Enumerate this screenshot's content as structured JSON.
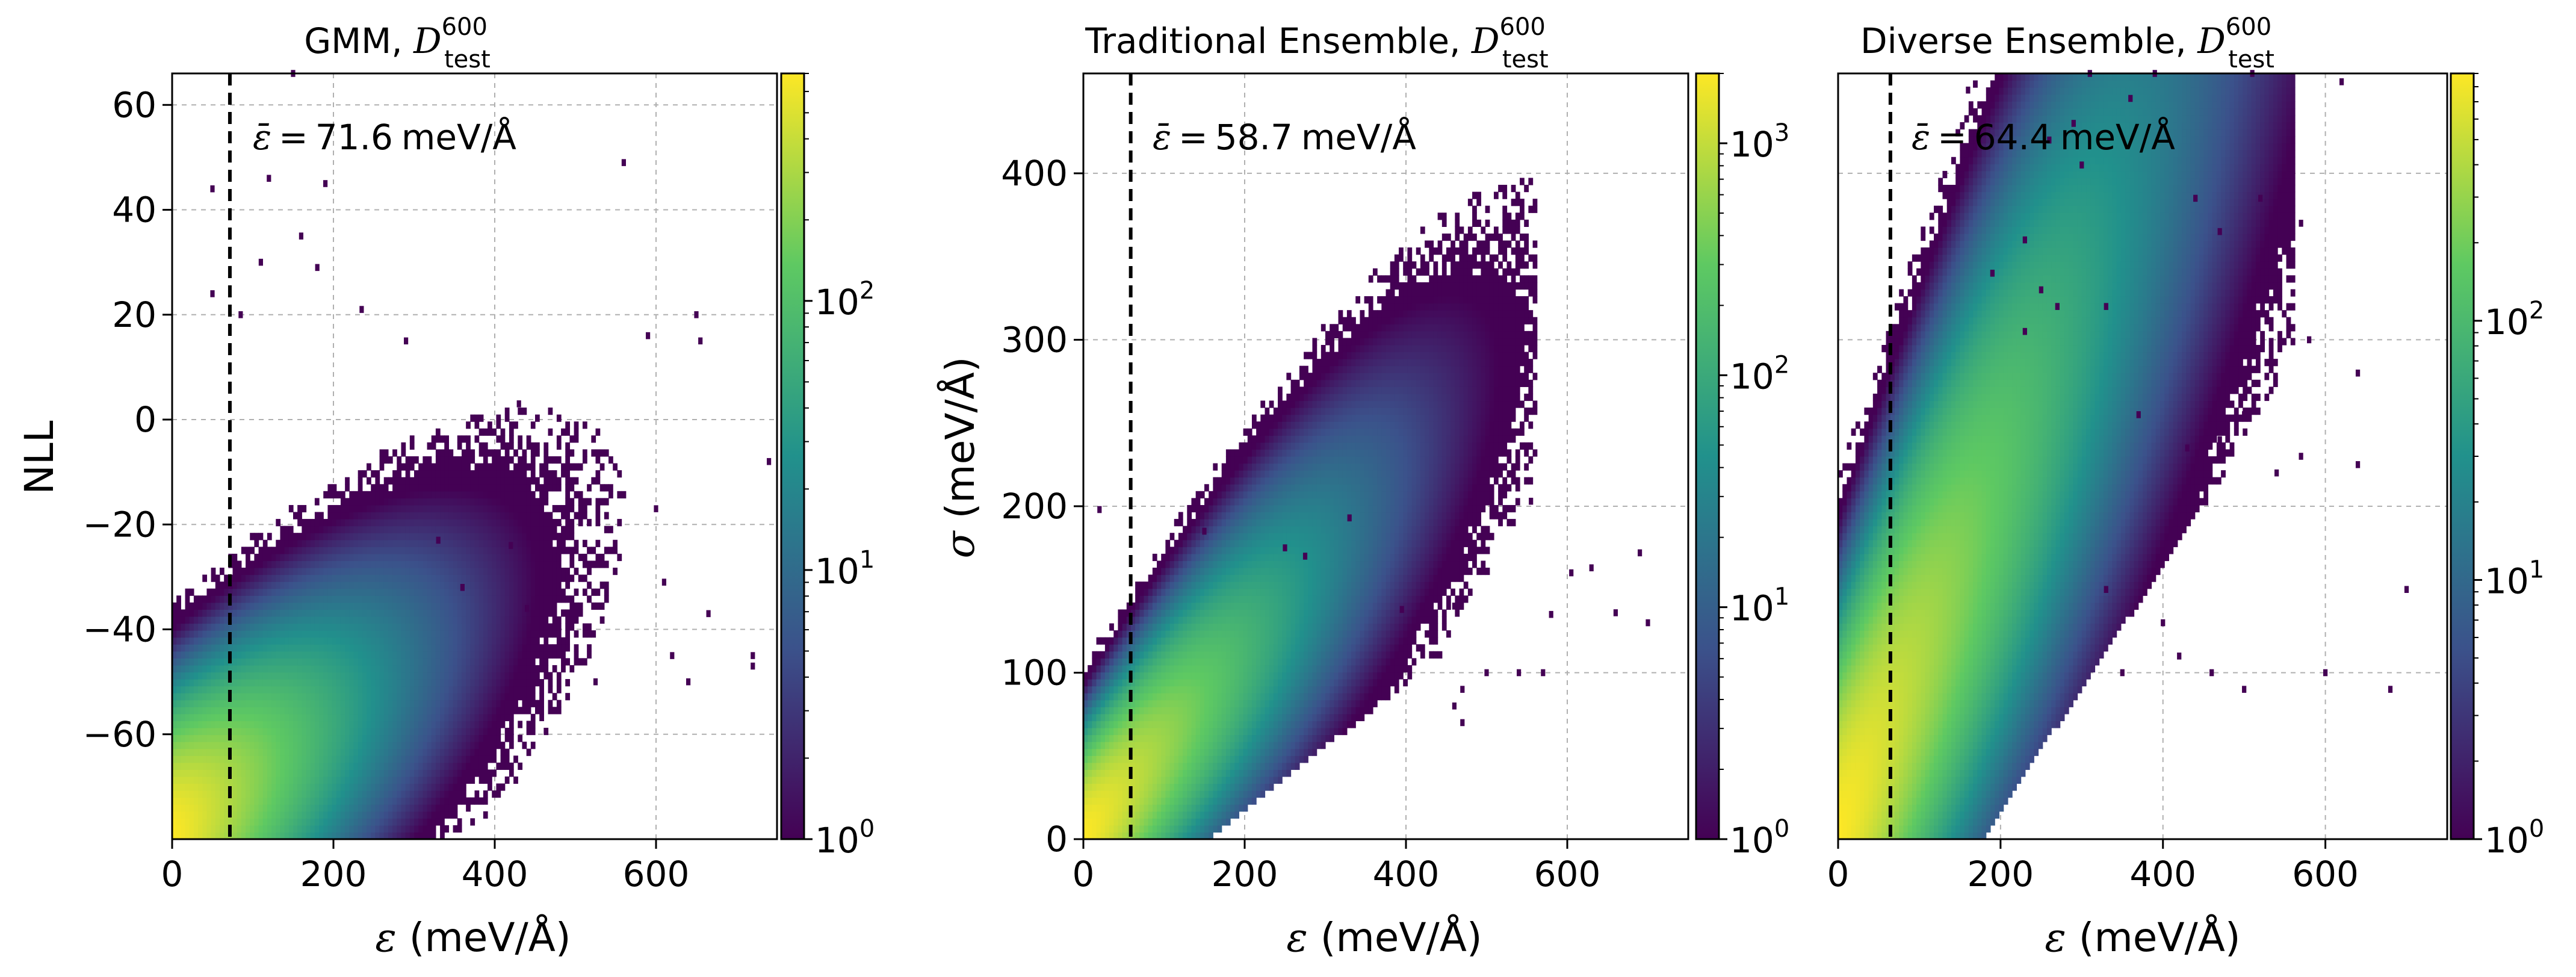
{
  "figure": {
    "colormap": "viridis",
    "colormap_stops": [
      "#440154",
      "#3b528b",
      "#21918c",
      "#5ec962",
      "#fde725"
    ],
    "grid_color": "#b0b0b0",
    "mean_line_color": "#000000",
    "epsilon_bar_symbol": "ε̄",
    "equals_sign": "=",
    "superscript": "600",
    "subscript": "test"
  },
  "chart_data": [
    {
      "type": "heatmap",
      "title_prefix": "GMM, ",
      "title_D": "D",
      "xlabel_symbol": "ε",
      "xlabel_unit": " (meV/Å)",
      "ylabel_symbol": "",
      "ylabel_unit": "NLL",
      "xlim": [
        0,
        750
      ],
      "ylim": [
        -80,
        66
      ],
      "xticks": [
        0,
        200,
        400,
        600
      ],
      "xtick_labels": [
        "0",
        "200",
        "400",
        "600"
      ],
      "yticks": [
        -60,
        -40,
        -20,
        0,
        20,
        40,
        60
      ],
      "ytick_labels": [
        "−60",
        "−40",
        "−20",
        "0",
        "20",
        "40",
        "60"
      ],
      "grid": true,
      "mean_error": 71.6,
      "mean_label_value": "71.6",
      "mean_label_unit": "meV/Å",
      "colorbar": {
        "scale": "log",
        "min": 1,
        "max": 700,
        "ticks": [
          1,
          10,
          100
        ],
        "tick_bases": [
          "10",
          "10",
          "10"
        ],
        "tick_exponents": [
          "0",
          "1",
          "2"
        ]
      },
      "density": {
        "x_center": 30,
        "x_spread": 55,
        "y_start": -80,
        "y_slope": 0.11,
        "y_spread": 9
      },
      "outliers": [
        [
          150,
          66
        ],
        [
          560,
          49
        ],
        [
          120,
          46
        ],
        [
          190,
          45
        ],
        [
          50,
          44
        ],
        [
          160,
          35
        ],
        [
          110,
          30
        ],
        [
          180,
          29
        ],
        [
          50,
          24
        ],
        [
          85,
          20
        ],
        [
          235,
          21
        ],
        [
          590,
          16
        ],
        [
          650,
          20
        ],
        [
          655,
          15
        ],
        [
          290,
          15
        ],
        [
          430,
          3
        ],
        [
          740,
          -8
        ],
        [
          600,
          -17
        ],
        [
          330,
          -23
        ],
        [
          420,
          -24
        ],
        [
          440,
          -36
        ],
        [
          610,
          -31
        ],
        [
          665,
          -37
        ],
        [
          360,
          -32
        ],
        [
          620,
          -45
        ],
        [
          640,
          -50
        ],
        [
          720,
          -45
        ],
        [
          525,
          -50
        ],
        [
          720,
          -47
        ]
      ]
    },
    {
      "type": "heatmap",
      "title_prefix": "Traditional Ensemble, ",
      "title_D": "D",
      "xlabel_symbol": "ε",
      "xlabel_unit": " (meV/Å)",
      "ylabel_symbol": "σ",
      "ylabel_unit": " (meV/Å)",
      "xlim": [
        0,
        750
      ],
      "ylim": [
        0,
        460
      ],
      "xticks": [
        0,
        200,
        400,
        600
      ],
      "xtick_labels": [
        "0",
        "200",
        "400",
        "600"
      ],
      "yticks": [
        0,
        100,
        200,
        300,
        400
      ],
      "ytick_labels": [
        "0",
        "100",
        "200",
        "300",
        "400"
      ],
      "grid": true,
      "mean_error": 58.7,
      "mean_label_value": "58.7",
      "mean_label_unit": "meV/Å",
      "colorbar": {
        "scale": "log",
        "min": 1,
        "max": 2000,
        "ticks": [
          1,
          10,
          100,
          1000
        ],
        "tick_bases": [
          "10",
          "10",
          "10",
          "10"
        ],
        "tick_exponents": [
          "0",
          "1",
          "2",
          "3"
        ]
      },
      "density": {
        "x_center": 25,
        "x_spread": 55,
        "y_start": 0,
        "y_slope": 0.55,
        "y_spread": 22
      },
      "outliers": [
        [
          20,
          198
        ],
        [
          555,
          203
        ],
        [
          480,
          190
        ],
        [
          690,
          172
        ],
        [
          605,
          160
        ],
        [
          630,
          163
        ],
        [
          420,
          140
        ],
        [
          460,
          140
        ],
        [
          660,
          136
        ],
        [
          395,
          138
        ],
        [
          580,
          135
        ],
        [
          700,
          130
        ],
        [
          330,
          193
        ],
        [
          150,
          185
        ],
        [
          250,
          175
        ],
        [
          275,
          170
        ],
        [
          500,
          100
        ],
        [
          470,
          90
        ],
        [
          540,
          100
        ],
        [
          460,
          80
        ],
        [
          470,
          70
        ],
        [
          570,
          100
        ]
      ]
    },
    {
      "type": "heatmap",
      "title_prefix": "Diverse Ensemble, ",
      "title_D": "D",
      "xlabel_symbol": "ε",
      "xlabel_unit": " (meV/Å)",
      "ylabel_symbol": "",
      "ylabel_unit": "",
      "xlim": [
        0,
        750
      ],
      "ylim": [
        0,
        460
      ],
      "xticks": [
        0,
        200,
        400,
        600
      ],
      "xtick_labels": [
        "0",
        "200",
        "400",
        "600"
      ],
      "yticks": [],
      "ytick_labels": [],
      "grid": true,
      "mean_error": 64.4,
      "mean_label_value": "64.4",
      "mean_label_unit": "meV/Å",
      "colorbar": {
        "scale": "log",
        "min": 1,
        "max": 900,
        "ticks": [
          1,
          10,
          100
        ],
        "tick_bases": [
          "10",
          "10",
          "10"
        ],
        "tick_exponents": [
          "0",
          "1",
          "2"
        ]
      },
      "density": {
        "x_center": 30,
        "x_spread": 75,
        "y_start": 0,
        "y_slope": 1.05,
        "y_spread": 50
      },
      "outliers": [
        [
          310,
          460
        ],
        [
          510,
          460
        ],
        [
          620,
          455
        ],
        [
          160,
          450
        ],
        [
          390,
          460
        ],
        [
          290,
          430
        ],
        [
          360,
          445
        ],
        [
          260,
          420
        ],
        [
          300,
          405
        ],
        [
          440,
          385
        ],
        [
          520,
          385
        ],
        [
          230,
          360
        ],
        [
          470,
          365
        ],
        [
          570,
          370
        ],
        [
          190,
          340
        ],
        [
          250,
          330
        ],
        [
          270,
          320
        ],
        [
          330,
          320
        ],
        [
          230,
          305
        ],
        [
          640,
          280
        ],
        [
          580,
          300
        ],
        [
          370,
          255
        ],
        [
          430,
          235
        ],
        [
          470,
          240
        ],
        [
          540,
          220
        ],
        [
          500,
          255
        ],
        [
          570,
          230
        ],
        [
          640,
          225
        ],
        [
          700,
          150
        ],
        [
          400,
          130
        ],
        [
          330,
          150
        ],
        [
          420,
          110
        ],
        [
          350,
          100
        ],
        [
          460,
          100
        ],
        [
          500,
          90
        ],
        [
          680,
          90
        ],
        [
          600,
          100
        ]
      ]
    }
  ]
}
